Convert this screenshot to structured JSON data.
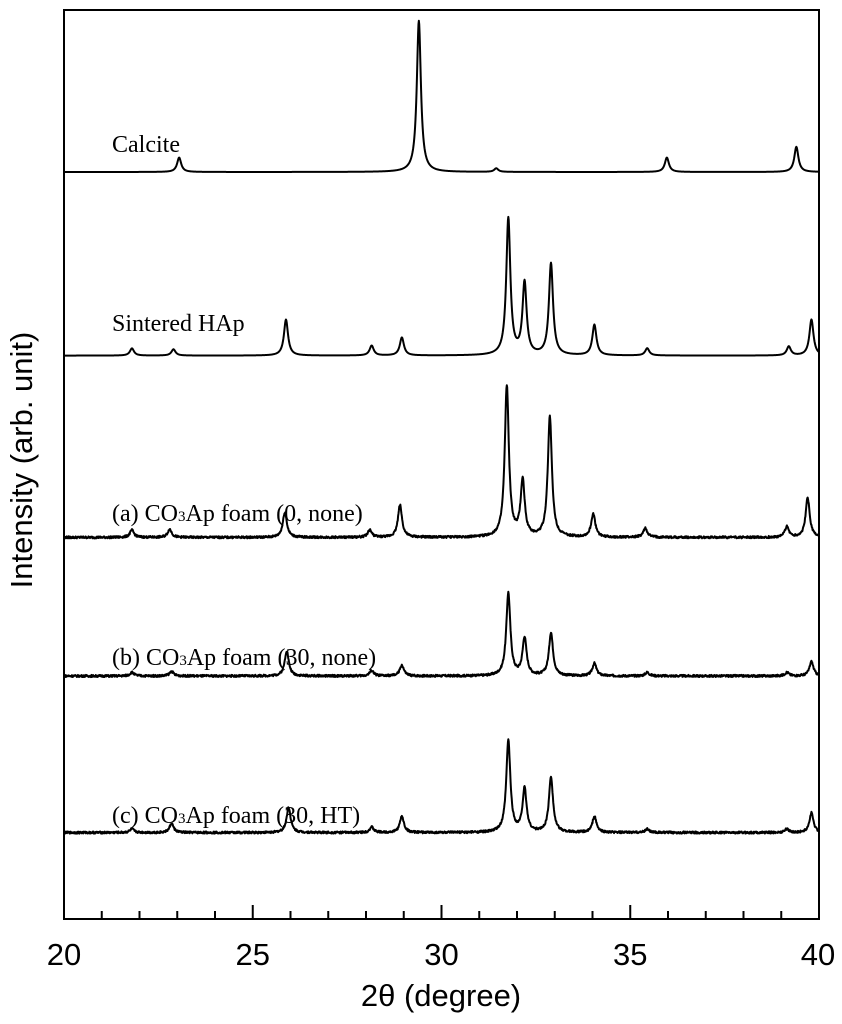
{
  "chart_data": {
    "type": "line",
    "title": "",
    "xlabel": "2θ (degree)",
    "ylabel": "Intensity (arb. unit)",
    "xlim": [
      20,
      40
    ],
    "xticks": [
      "20",
      "25",
      "30",
      "35",
      "40"
    ],
    "minor_tick_step": 1,
    "grid": false,
    "legend": "none (labels placed above each trace)",
    "line_color": "#000000",
    "series": [
      {
        "label_prefix": "",
        "label_main": "Calcite",
        "label_sub": "",
        "label_suffix": "",
        "baseline_intensity": 4.0,
        "peaks": [
          {
            "x": 23.05,
            "h": 0.08
          },
          {
            "x": 29.4,
            "h": 0.84
          },
          {
            "x": 31.45,
            "h": 0.02
          },
          {
            "x": 35.97,
            "h": 0.08
          },
          {
            "x": 39.4,
            "h": 0.14
          }
        ]
      },
      {
        "label_prefix": "",
        "label_main": "Sintered HAp",
        "label_sub": "",
        "label_suffix": "",
        "baseline_intensity": 2.98,
        "peaks": [
          {
            "x": 21.8,
            "h": 0.04
          },
          {
            "x": 22.9,
            "h": 0.035
          },
          {
            "x": 25.88,
            "h": 0.2
          },
          {
            "x": 28.15,
            "h": 0.055
          },
          {
            "x": 28.95,
            "h": 0.1
          },
          {
            "x": 31.77,
            "h": 0.76
          },
          {
            "x": 32.2,
            "h": 0.4
          },
          {
            "x": 32.9,
            "h": 0.51
          },
          {
            "x": 34.05,
            "h": 0.17
          },
          {
            "x": 35.45,
            "h": 0.04
          },
          {
            "x": 39.2,
            "h": 0.05
          },
          {
            "x": 39.8,
            "h": 0.2
          }
        ]
      },
      {
        "label_prefix": "(a) CO",
        "label_main": "",
        "label_sub": "3",
        "label_suffix": "Ap foam (0, none)",
        "baseline_intensity": 1.97,
        "peaks": [
          {
            "x": 21.8,
            "h": 0.04
          },
          {
            "x": 22.8,
            "h": 0.045
          },
          {
            "x": 25.85,
            "h": 0.14
          },
          {
            "x": 28.1,
            "h": 0.04
          },
          {
            "x": 28.9,
            "h": 0.18
          },
          {
            "x": 31.73,
            "h": 0.84
          },
          {
            "x": 32.15,
            "h": 0.31
          },
          {
            "x": 32.87,
            "h": 0.67
          },
          {
            "x": 34.02,
            "h": 0.13
          },
          {
            "x": 35.4,
            "h": 0.05
          },
          {
            "x": 39.15,
            "h": 0.06
          },
          {
            "x": 39.7,
            "h": 0.22
          }
        ]
      },
      {
        "label_prefix": "(b) CO",
        "label_main": "",
        "label_sub": "3",
        "label_suffix": "Ap foam (30, none)",
        "baseline_intensity": 1.2,
        "peaks": [
          {
            "x": 21.8,
            "h": 0.02
          },
          {
            "x": 22.85,
            "h": 0.025
          },
          {
            "x": 25.9,
            "h": 0.14
          },
          {
            "x": 28.15,
            "h": 0.03
          },
          {
            "x": 28.95,
            "h": 0.06
          },
          {
            "x": 31.77,
            "h": 0.46
          },
          {
            "x": 32.2,
            "h": 0.21
          },
          {
            "x": 32.9,
            "h": 0.24
          },
          {
            "x": 34.05,
            "h": 0.07
          },
          {
            "x": 35.45,
            "h": 0.02
          },
          {
            "x": 39.15,
            "h": 0.02
          },
          {
            "x": 39.8,
            "h": 0.08
          }
        ]
      },
      {
        "label_prefix": "(c) CO",
        "label_main": "",
        "label_sub": "3",
        "label_suffix": "Ap foam (30, HT)",
        "baseline_intensity": 0.33,
        "peaks": [
          {
            "x": 21.8,
            "h": 0.02
          },
          {
            "x": 22.85,
            "h": 0.05
          },
          {
            "x": 25.95,
            "h": 0.14
          },
          {
            "x": 28.15,
            "h": 0.03
          },
          {
            "x": 28.95,
            "h": 0.09
          },
          {
            "x": 31.77,
            "h": 0.51
          },
          {
            "x": 32.2,
            "h": 0.24
          },
          {
            "x": 32.9,
            "h": 0.31
          },
          {
            "x": 34.05,
            "h": 0.09
          },
          {
            "x": 35.45,
            "h": 0.02
          },
          {
            "x": 39.15,
            "h": 0.02
          },
          {
            "x": 39.8,
            "h": 0.11
          }
        ]
      }
    ]
  }
}
